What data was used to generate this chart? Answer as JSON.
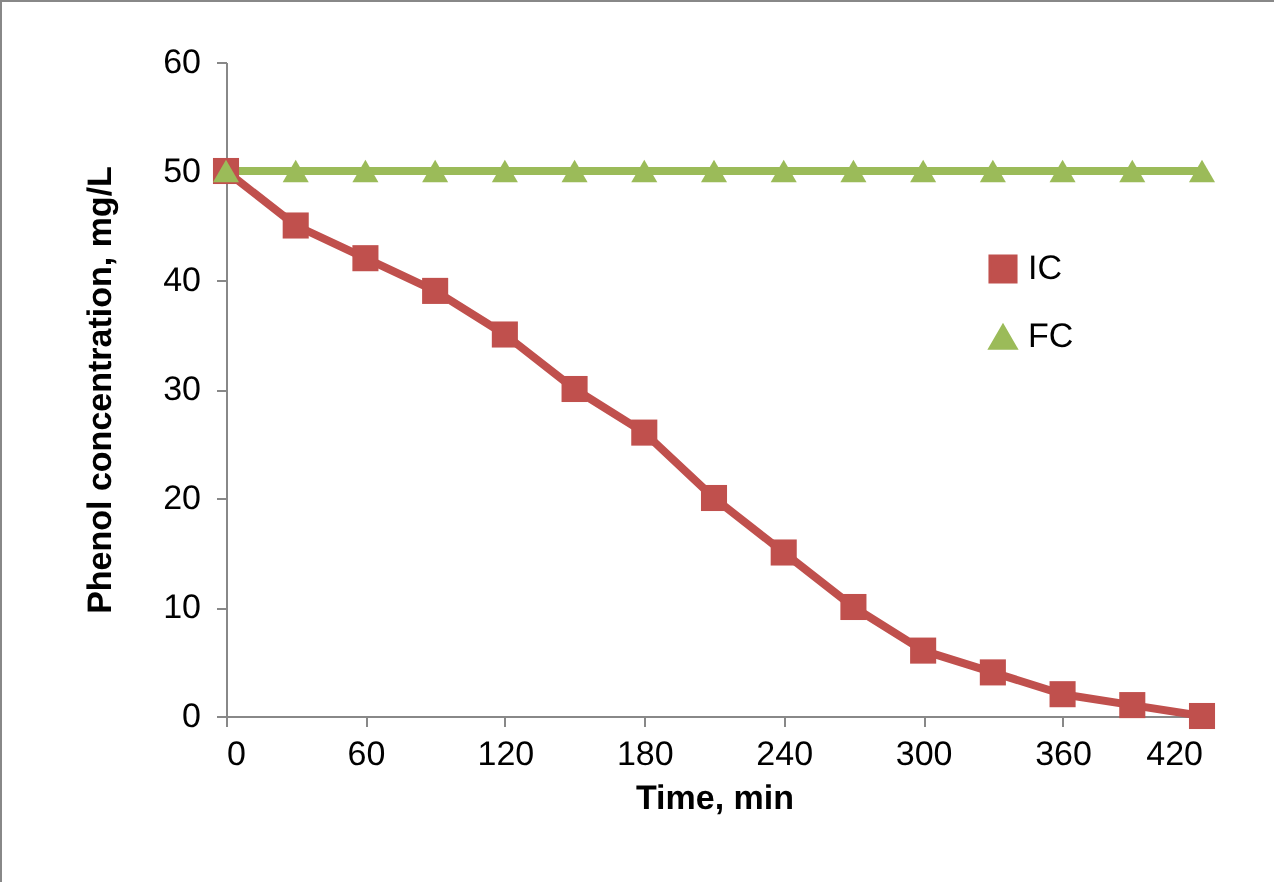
{
  "chart_data": {
    "type": "line",
    "xlabel": "Time, min",
    "ylabel": "Phenol concentration, mg/L",
    "x": [
      0,
      30,
      60,
      90,
      120,
      150,
      180,
      210,
      240,
      270,
      300,
      330,
      360,
      390,
      420
    ],
    "series": [
      {
        "name": "IC",
        "color": "#c0504d",
        "marker": "square",
        "values": [
          50,
          45,
          42,
          39,
          35,
          30,
          26,
          20,
          15,
          10,
          6,
          4,
          2,
          1,
          0
        ]
      },
      {
        "name": "FC",
        "color": "#9bbb59",
        "marker": "triangle",
        "values": [
          50,
          50,
          50,
          50,
          50,
          50,
          50,
          50,
          50,
          50,
          50,
          50,
          50,
          50,
          50
        ]
      }
    ],
    "xlim": [
      0,
      420
    ],
    "xticks": [
      0,
      60,
      120,
      180,
      240,
      300,
      360,
      420
    ],
    "ylim": [
      0,
      60
    ],
    "yticks": [
      0,
      10,
      20,
      30,
      40,
      50,
      60
    ],
    "grid": false,
    "legend": "top right",
    "line_style": "solid"
  }
}
